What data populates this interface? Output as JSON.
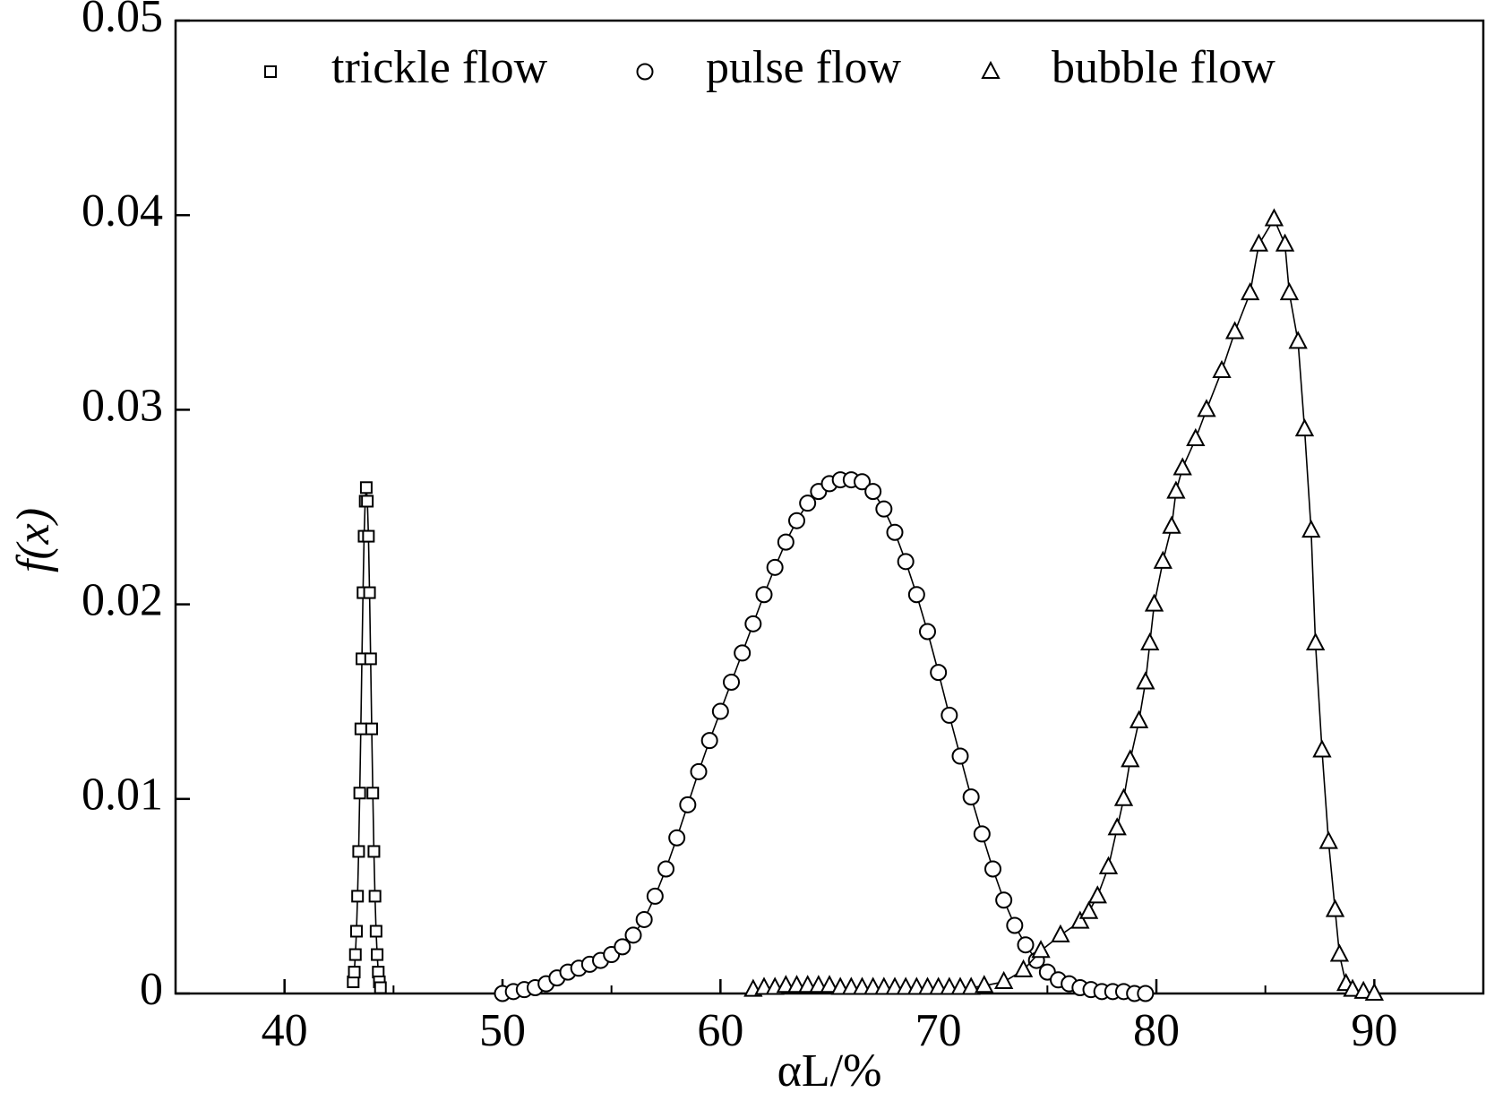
{
  "chart_data": {
    "type": "line",
    "x_label": "αL/%",
    "y_label": "f(x)",
    "xlim": [
      35,
      95
    ],
    "ylim": [
      0,
      0.05
    ],
    "xticks": [
      40,
      50,
      60,
      70,
      80,
      90
    ],
    "xminorticks": [
      45,
      55,
      65,
      75,
      85
    ],
    "yticks": [
      0,
      0.01,
      0.02,
      0.03,
      0.04,
      0.05
    ],
    "legend": "top",
    "series": [
      {
        "name": "trickle flow",
        "color": "#000000",
        "marker": "square",
        "x": [
          43.15,
          43.2,
          43.25,
          43.3,
          43.35,
          43.4,
          43.45,
          43.5,
          43.55,
          43.6,
          43.65,
          43.7,
          43.75,
          43.8,
          43.85,
          43.9,
          43.95,
          44.0,
          44.05,
          44.1,
          44.15,
          44.2,
          44.25,
          44.3,
          44.35,
          44.4
        ],
        "values": [
          0.0006,
          0.0011,
          0.002,
          0.0032,
          0.005,
          0.0073,
          0.0103,
          0.0136,
          0.0172,
          0.0206,
          0.0235,
          0.0253,
          0.026,
          0.0253,
          0.0235,
          0.0206,
          0.0172,
          0.0136,
          0.0103,
          0.0073,
          0.005,
          0.0032,
          0.002,
          0.0011,
          0.0006,
          0.0003
        ]
      },
      {
        "name": "pulse flow",
        "color": "#000000",
        "marker": "circle",
        "x": [
          50,
          50.5,
          51,
          51.5,
          52,
          52.5,
          53,
          53.5,
          54,
          54.5,
          55,
          55.5,
          56,
          56.5,
          57,
          57.5,
          58,
          58.5,
          59,
          59.5,
          60,
          60.5,
          61,
          61.5,
          62,
          62.5,
          63,
          63.5,
          64,
          64.5,
          65,
          65.5,
          66,
          66.5,
          67,
          67.5,
          68,
          68.5,
          69,
          69.5,
          70,
          70.5,
          71,
          71.5,
          72,
          72.5,
          73,
          73.5,
          74,
          74.5,
          75,
          75.5,
          76,
          76.5,
          77,
          77.5,
          78,
          78.5,
          79,
          79.5
        ],
        "values": [
          0.0,
          0.0001,
          0.0002,
          0.0003,
          0.0005,
          0.0008,
          0.0011,
          0.0013,
          0.0015,
          0.0017,
          0.002,
          0.0024,
          0.003,
          0.0038,
          0.005,
          0.0064,
          0.008,
          0.0097,
          0.0114,
          0.013,
          0.0145,
          0.016,
          0.0175,
          0.019,
          0.0205,
          0.0219,
          0.0232,
          0.0243,
          0.0252,
          0.0258,
          0.0262,
          0.0264,
          0.0264,
          0.0263,
          0.0258,
          0.0249,
          0.0237,
          0.0222,
          0.0205,
          0.0186,
          0.0165,
          0.0143,
          0.0122,
          0.0101,
          0.0082,
          0.0064,
          0.0048,
          0.0035,
          0.0025,
          0.0017,
          0.0011,
          0.0007,
          0.0005,
          0.0003,
          0.0002,
          0.0001,
          0.0001,
          0.0001,
          0.0,
          0.0
        ]
      },
      {
        "name": "bubble flow",
        "color": "#000000",
        "marker": "triangle",
        "x": [
          61.5,
          62,
          62.5,
          63,
          63.5,
          64,
          64.5,
          65,
          65.5,
          66,
          66.5,
          67,
          67.5,
          68,
          68.5,
          69,
          69.5,
          70,
          70.5,
          71,
          71.5,
          72.1,
          73.0,
          73.9,
          74.7,
          75.6,
          76.5,
          76.9,
          77.3,
          77.8,
          78.2,
          78.5,
          78.8,
          79.2,
          79.5,
          79.7,
          79.9,
          80.3,
          80.7,
          80.9,
          81.2,
          81.8,
          82.3,
          83.0,
          83.6,
          84.3,
          84.7,
          85.4,
          85.9,
          86.1,
          86.5,
          86.8,
          87.1,
          87.3,
          87.6,
          87.9,
          88.2,
          88.4,
          88.7,
          89.0,
          89.5,
          90.0
        ],
        "values": [
          0.0002,
          0.0003,
          0.0003,
          0.0004,
          0.0004,
          0.0004,
          0.0004,
          0.0004,
          0.0003,
          0.0003,
          0.0003,
          0.0003,
          0.0003,
          0.0003,
          0.0003,
          0.0003,
          0.0003,
          0.0003,
          0.0003,
          0.0003,
          0.0003,
          0.0004,
          0.0006,
          0.0012,
          0.0022,
          0.003,
          0.0037,
          0.0042,
          0.005,
          0.0065,
          0.0085,
          0.01,
          0.012,
          0.014,
          0.016,
          0.018,
          0.02,
          0.0222,
          0.024,
          0.0258,
          0.027,
          0.0285,
          0.03,
          0.032,
          0.034,
          0.036,
          0.0385,
          0.0398,
          0.0385,
          0.036,
          0.0335,
          0.029,
          0.0238,
          0.018,
          0.0125,
          0.0078,
          0.0043,
          0.002,
          0.0005,
          0.0002,
          0.0001,
          0.0
        ]
      }
    ]
  }
}
